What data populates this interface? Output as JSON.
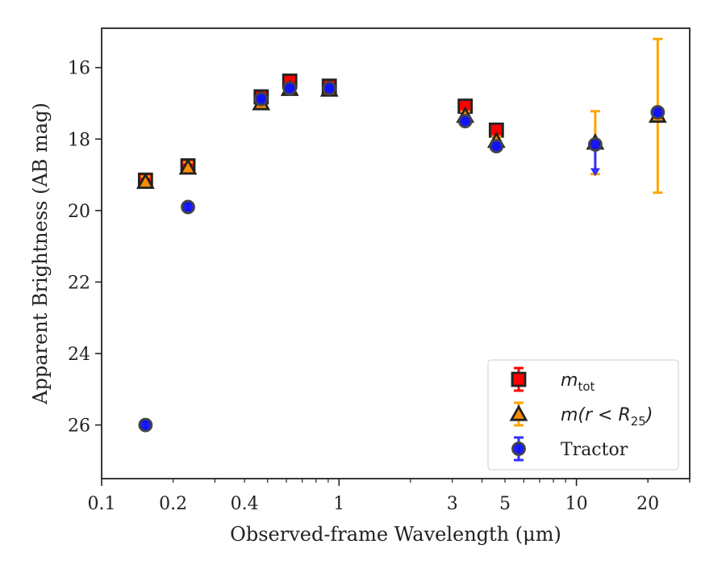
{
  "chart_data": {
    "type": "scatter",
    "title": "",
    "xlabel": "Observed-frame Wavelength (μm)",
    "ylabel": "Apparent Brightness (AB mag)",
    "x_scale": "log",
    "xlim": [
      0.1,
      30
    ],
    "ylim": [
      27.5,
      14.9
    ],
    "y_inverted": true,
    "grid": false,
    "legend_position": "lower-right",
    "x_ticks": [
      {
        "value": 0.1,
        "label": "0.1"
      },
      {
        "value": 0.2,
        "label": "0.2"
      },
      {
        "value": 0.4,
        "label": "0.4"
      },
      {
        "value": 1,
        "label": "1"
      },
      {
        "value": 3,
        "label": "3"
      },
      {
        "value": 5,
        "label": "5"
      },
      {
        "value": 10,
        "label": "10"
      },
      {
        "value": 20,
        "label": "20"
      }
    ],
    "y_ticks": [
      {
        "value": 16,
        "label": "16"
      },
      {
        "value": 18,
        "label": "18"
      },
      {
        "value": 20,
        "label": "20"
      },
      {
        "value": 22,
        "label": "22"
      },
      {
        "value": 24,
        "label": "24"
      },
      {
        "value": 26,
        "label": "26"
      }
    ],
    "series": [
      {
        "name": "m_tot",
        "legend_main": "m",
        "legend_sub": "tot",
        "marker": "square",
        "face_color": "#ff0000",
        "edge_color": "#222222",
        "error_color": "#ff0000",
        "points": [
          {
            "x": 0.153,
            "y": 19.15,
            "err": 0.15
          },
          {
            "x": 0.231,
            "y": 18.75,
            "err": 0.15
          },
          {
            "x": 0.47,
            "y": 16.82,
            "err": 0.12
          },
          {
            "x": 0.62,
            "y": 16.38,
            "err": 0.12
          },
          {
            "x": 0.91,
            "y": 16.52,
            "err": 0.12
          },
          {
            "x": 3.4,
            "y": 17.08,
            "err": 0.12
          },
          {
            "x": 4.6,
            "y": 17.75,
            "err": 0.12
          }
        ]
      },
      {
        "name": "m(r < R_25)",
        "legend_main": "m(r < R",
        "legend_sub": "25",
        "legend_end": ")",
        "marker": "triangle",
        "face_color": "#ff8c00",
        "edge_color": "#222222",
        "error_color": "#ffa500",
        "points": [
          {
            "x": 0.153,
            "y": 19.2,
            "err": 0.15
          },
          {
            "x": 0.231,
            "y": 18.8,
            "err": 0.15
          },
          {
            "x": 0.47,
            "y": 17.0,
            "err": 0.12
          },
          {
            "x": 0.62,
            "y": 16.6,
            "err": 0.12
          },
          {
            "x": 0.91,
            "y": 16.62,
            "err": 0.12
          },
          {
            "x": 3.4,
            "y": 17.35,
            "err": 0.12
          },
          {
            "x": 4.6,
            "y": 18.05,
            "err": 0.12
          },
          {
            "x": 12.0,
            "y": 18.1,
            "err": 0.88
          },
          {
            "x": 22.0,
            "y": 17.35,
            "err": 2.15
          }
        ]
      },
      {
        "name": "Tractor",
        "marker": "circle",
        "face_color": "#1010ff",
        "edge_color": "#444444",
        "error_color": "#3030ff",
        "points": [
          {
            "x": 0.153,
            "y": 26.0,
            "err": 0.1
          },
          {
            "x": 0.231,
            "y": 19.9,
            "err": 0.1
          },
          {
            "x": 0.47,
            "y": 16.88,
            "err": 0.08
          },
          {
            "x": 0.62,
            "y": 16.58,
            "err": 0.08
          },
          {
            "x": 0.91,
            "y": 16.58,
            "err": 0.08
          },
          {
            "x": 3.4,
            "y": 17.5,
            "err": 0.08
          },
          {
            "x": 4.6,
            "y": 18.2,
            "err": 0.08
          },
          {
            "x": 12.0,
            "y": 18.15,
            "upper_limit_to": 18.95
          },
          {
            "x": 22.0,
            "y": 17.25,
            "err": 0.1
          }
        ]
      }
    ]
  }
}
